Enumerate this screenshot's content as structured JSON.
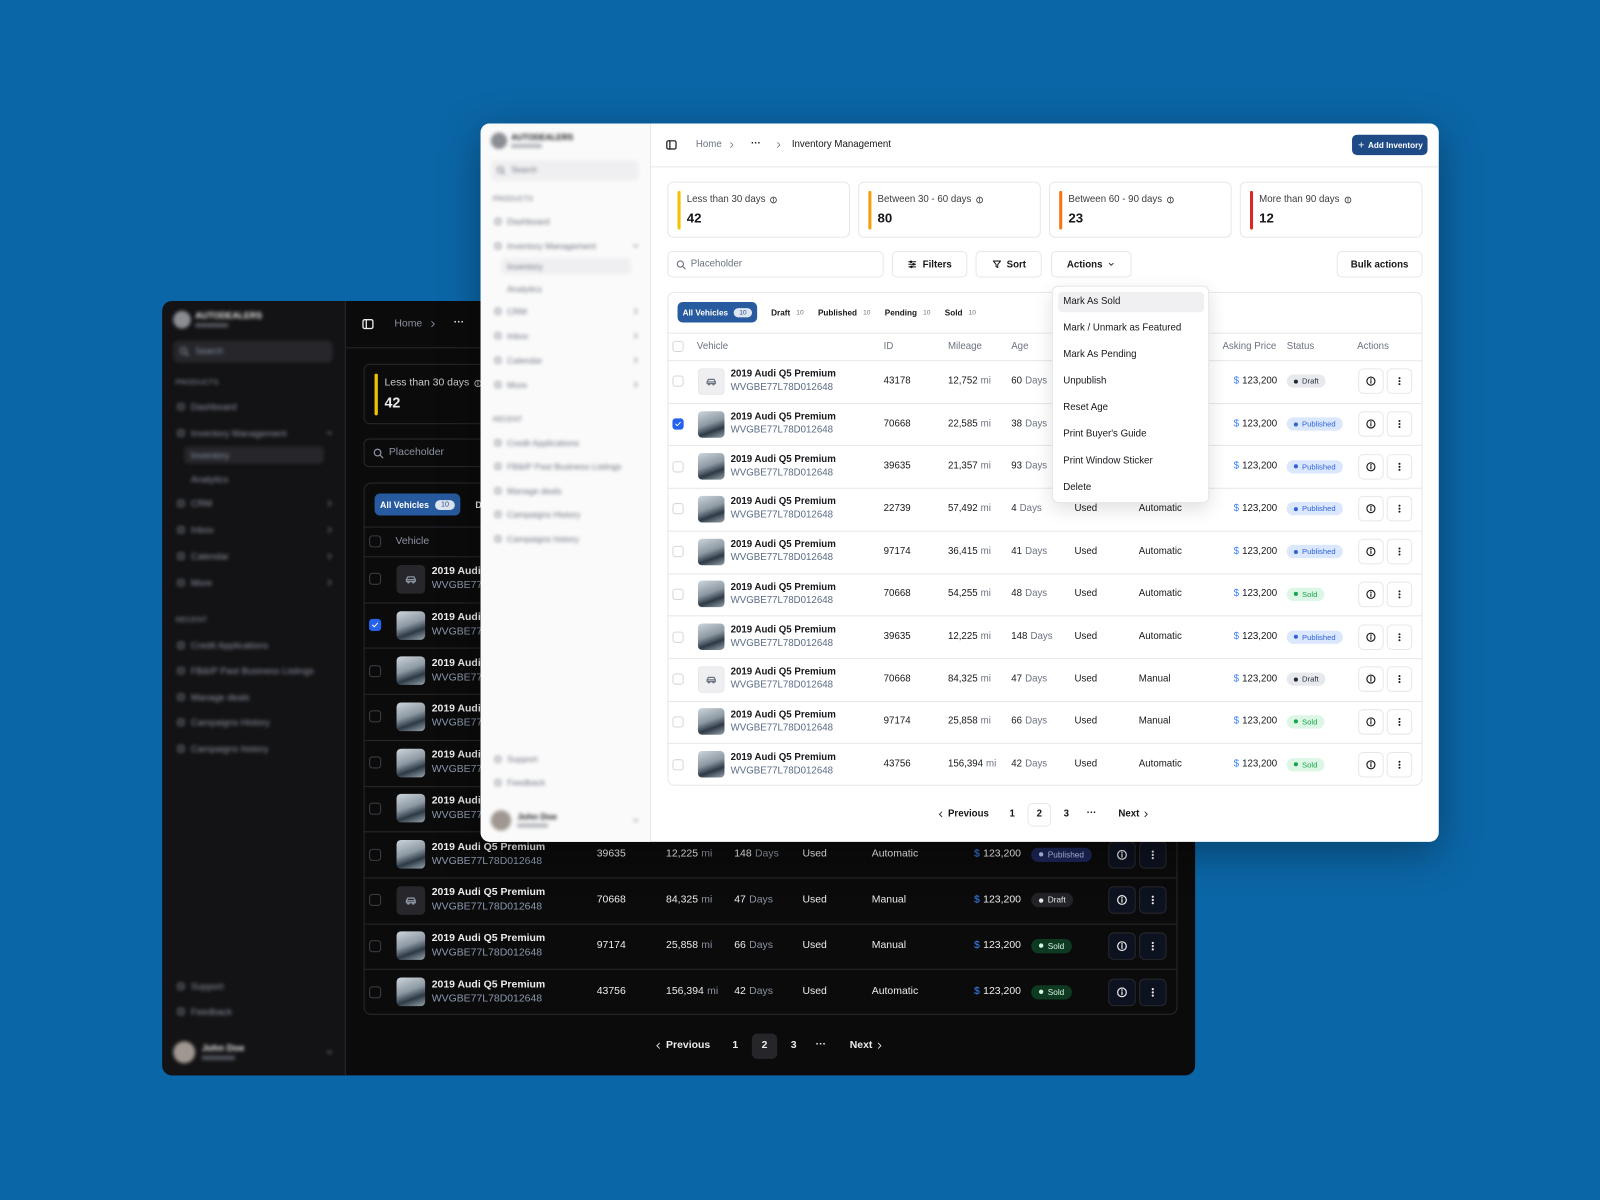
{
  "sidebar": {
    "brand": "AUTODEALERS",
    "search": "Search",
    "products_heading": "PRODUCTS",
    "nav": [
      "Dashboard",
      "Inventory Management",
      "Inventory",
      "Analytics",
      "CRM",
      "Inbox",
      "Calendar",
      "More"
    ],
    "recent_heading": "RECENT",
    "recent": [
      "Credit Applications",
      "FB&IP Past Business Listings",
      "Manage deals",
      "Campaigns History",
      "Campaigns history"
    ],
    "footer": [
      "Support",
      "Feedback"
    ],
    "user_name": "John Doe"
  },
  "header": {
    "breadcrumb": [
      "Home",
      "···",
      "Inventory Management"
    ],
    "add_button": "Add Inventory"
  },
  "cards": [
    {
      "label": "Less than 30 days",
      "value": 42,
      "accent": "#f2c200"
    },
    {
      "label": "Between 30 - 60 days",
      "value": 80,
      "accent": "#f59e0b"
    },
    {
      "label": "Between 60 - 90 days",
      "value": 23,
      "accent": "#f97316"
    },
    {
      "label": "More than 90 days",
      "value": 12,
      "accent": "#dc2626"
    }
  ],
  "toolbar": {
    "search_placeholder": "Placeholder",
    "filters": "Filters",
    "sort": "Sort",
    "actions": "Actions",
    "bulk_actions": "Bulk actions"
  },
  "tabs": [
    {
      "label": "All Vehicles",
      "count": 10
    },
    {
      "label": "Draft",
      "count": 10
    },
    {
      "label": "Published",
      "count": 10
    },
    {
      "label": "Pending",
      "count": 10
    },
    {
      "label": "Sold",
      "count": 10
    }
  ],
  "columns": {
    "vehicle": "Vehicle",
    "id": "ID",
    "mileage": "Mileage",
    "age": "Age",
    "price": "Asking Price",
    "status": "Status",
    "actions": "Actions"
  },
  "units": {
    "mileage": "mi",
    "age": "Days",
    "currency": "$"
  },
  "rows": [
    {
      "title": "2019 Audi Q5 Premium",
      "vin": "WVGBE77L78D012648",
      "id": 43178,
      "mileage": "12,752",
      "age": 60,
      "price": "123,200",
      "status": "Draft",
      "checked": false,
      "photo": false
    },
    {
      "title": "2019 Audi Q5 Premium",
      "vin": "WVGBE77L78D012648",
      "id": 70668,
      "mileage": "22,585",
      "age": 38,
      "price": "123,200",
      "status": "Published",
      "checked": true,
      "photo": true
    },
    {
      "title": "2019 Audi Q5 Premium",
      "vin": "WVGBE77L78D012648",
      "id": 39635,
      "mileage": "21,357",
      "age": 93,
      "price": "123,200",
      "status": "Published",
      "checked": false,
      "photo": true
    },
    {
      "title": "2019 Audi Q5 Premium",
      "vin": "WVGBE77L78D012648",
      "id": 22739,
      "mileage": "57,492",
      "age": 4,
      "condition": "Used",
      "transmission": "Automatic",
      "price": "123,200",
      "status": "Published",
      "checked": false,
      "photo": true
    },
    {
      "title": "2019 Audi Q5 Premium",
      "vin": "WVGBE77L78D012648",
      "id": 97174,
      "mileage": "36,415",
      "age": 41,
      "condition": "Used",
      "transmission": "Automatic",
      "price": "123,200",
      "status": "Published",
      "checked": false,
      "photo": true
    },
    {
      "title": "2019 Audi Q5 Premium",
      "vin": "WVGBE77L78D012648",
      "id": 70668,
      "mileage": "54,255",
      "age": 48,
      "condition": "Used",
      "transmission": "Automatic",
      "price": "123,200",
      "status": "Sold",
      "checked": false,
      "photo": true
    },
    {
      "title": "2019 Audi Q5 Premium",
      "vin": "WVGBE77L78D012648",
      "id": 39635,
      "mileage": "12,225",
      "age": 148,
      "condition": "Used",
      "transmission": "Automatic",
      "price": "123,200",
      "status": "Published",
      "checked": false,
      "photo": true
    },
    {
      "title": "2019 Audi Q5 Premium",
      "vin": "WVGBE77L78D012648",
      "id": 70668,
      "mileage": "84,325",
      "age": 47,
      "condition": "Used",
      "transmission": "Manual",
      "price": "123,200",
      "status": "Draft",
      "checked": false,
      "photo": false
    },
    {
      "title": "2019 Audi Q5 Premium",
      "vin": "WVGBE77L78D012648",
      "id": 97174,
      "mileage": "25,858",
      "age": 66,
      "condition": "Used",
      "transmission": "Manual",
      "price": "123,200",
      "status": "Sold",
      "checked": false,
      "photo": true
    },
    {
      "title": "2019 Audi Q5 Premium",
      "vin": "WVGBE77L78D012648",
      "id": 43756,
      "mileage": "156,394",
      "age": 42,
      "condition": "Used",
      "transmission": "Automatic",
      "price": "123,200",
      "status": "Sold",
      "checked": false,
      "photo": true
    }
  ],
  "actions_menu": [
    "Mark As Sold",
    "Mark / Unmark as Featured",
    "Mark As Pending",
    "Unpublish",
    "Reset Age",
    "Print Buyer's Guide",
    "Print Window Sticker",
    "Delete"
  ],
  "pagination": {
    "previous": "Previous",
    "pages": [
      1,
      2,
      3
    ],
    "current": 2,
    "ellipsis": "···",
    "next": "Next"
  }
}
